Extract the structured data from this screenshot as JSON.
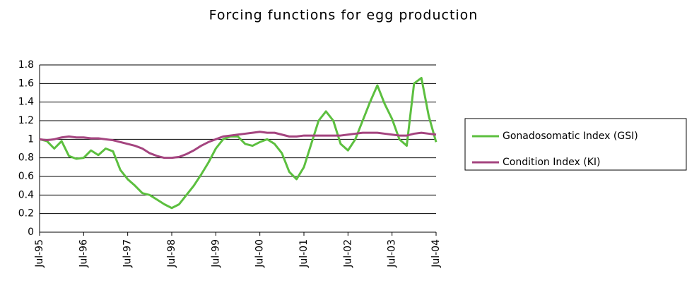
{
  "chart_data": {
    "type": "line",
    "title": "Forcing functions for egg production",
    "categories": [
      "Jul-95",
      null,
      null,
      null,
      null,
      null,
      "Jul-96",
      null,
      null,
      null,
      null,
      null,
      "Jul-97",
      null,
      null,
      null,
      null,
      null,
      "Jul-98",
      null,
      null,
      null,
      null,
      null,
      "Jul-99",
      null,
      null,
      null,
      null,
      null,
      "Jul-00",
      null,
      null,
      null,
      null,
      null,
      "Jul-01",
      null,
      null,
      null,
      null,
      null,
      "Jul-02",
      null,
      null,
      null,
      null,
      null,
      "Jul-03",
      null,
      null,
      null,
      null,
      null,
      "Jul-04"
    ],
    "series": [
      {
        "name": "Gonadosomatic Index (GSI)",
        "color": "#5cbf3f",
        "values": [
          1.0,
          0.98,
          0.9,
          0.98,
          0.82,
          0.79,
          0.8,
          0.88,
          0.83,
          0.9,
          0.87,
          0.67,
          0.57,
          0.5,
          0.42,
          0.4,
          0.35,
          0.3,
          0.26,
          0.3,
          0.4,
          0.5,
          0.62,
          0.75,
          0.9,
          1.0,
          1.03,
          1.03,
          0.95,
          0.93,
          0.97,
          1.0,
          0.95,
          0.85,
          0.65,
          0.57,
          0.7,
          0.95,
          1.2,
          1.3,
          1.2,
          0.95,
          0.88,
          1.0,
          1.2,
          1.4,
          1.58,
          1.38,
          1.22,
          1.0,
          0.93,
          1.6,
          1.66,
          1.25,
          0.97
        ]
      },
      {
        "name": "Condition Index (KI)",
        "color": "#a4447f",
        "values": [
          1.0,
          0.99,
          1.0,
          1.02,
          1.03,
          1.02,
          1.02,
          1.01,
          1.01,
          1.0,
          0.99,
          0.97,
          0.95,
          0.93,
          0.9,
          0.85,
          0.82,
          0.8,
          0.8,
          0.81,
          0.84,
          0.88,
          0.93,
          0.97,
          1.0,
          1.03,
          1.04,
          1.05,
          1.06,
          1.07,
          1.08,
          1.07,
          1.07,
          1.05,
          1.03,
          1.03,
          1.04,
          1.04,
          1.04,
          1.04,
          1.04,
          1.04,
          1.05,
          1.06,
          1.07,
          1.07,
          1.07,
          1.06,
          1.05,
          1.04,
          1.04,
          1.06,
          1.07,
          1.06,
          1.05
        ]
      }
    ],
    "ylim": [
      0,
      1.8
    ],
    "yticks": [
      0,
      0.2,
      0.4,
      0.6,
      0.8,
      1,
      1.2,
      1.4,
      1.6,
      1.8
    ],
    "grid": true
  }
}
